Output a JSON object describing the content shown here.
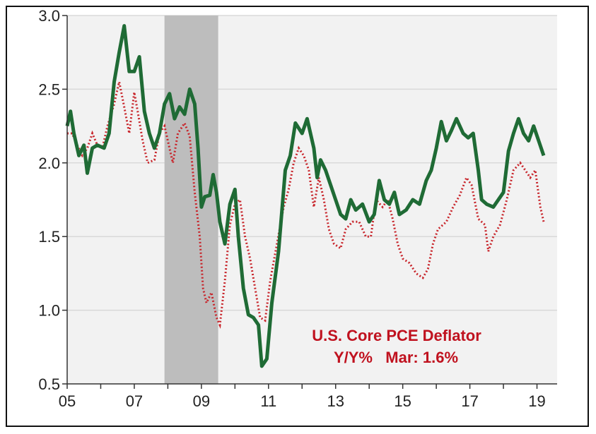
{
  "colors": {
    "plot_bg": "#f2f2f2",
    "grid": "#d9d9d9",
    "recession": "#bdbdbd",
    "green_series": "#1f6b35",
    "red_series": "#c8252b",
    "annotation": "#c0121f"
  },
  "chart_data": {
    "type": "line",
    "title": "",
    "annotation_lines": [
      "U.S. Core PCE Deflator",
      "Y/Y%   Mar: 1.6%"
    ],
    "xlabel": "",
    "ylabel": "",
    "xlim": [
      2005,
      2019.6
    ],
    "ylim": [
      0.5,
      3.0
    ],
    "y_ticks": [
      0.5,
      1.0,
      1.5,
      2.0,
      2.5,
      3.0
    ],
    "y_tick_labels": [
      "0.5",
      "1.0",
      "1.5",
      "2.0",
      "2.5",
      "3.0"
    ],
    "x_ticks": [
      2005,
      2007,
      2009,
      2011,
      2013,
      2015,
      2017,
      2019
    ],
    "x_tick_labels": [
      "05",
      "07",
      "09",
      "11",
      "13",
      "15",
      "17",
      "19"
    ],
    "grid": "horizontal",
    "recession_band": [
      2007.9,
      2009.5
    ],
    "series": [
      {
        "style": "solid",
        "points": [
          [
            2005.0,
            2.25
          ],
          [
            2005.1,
            2.35
          ],
          [
            2005.2,
            2.2
          ],
          [
            2005.35,
            2.05
          ],
          [
            2005.5,
            2.12
          ],
          [
            2005.6,
            1.93
          ],
          [
            2005.75,
            2.1
          ],
          [
            2005.9,
            2.12
          ],
          [
            2006.1,
            2.1
          ],
          [
            2006.25,
            2.2
          ],
          [
            2006.4,
            2.55
          ],
          [
            2006.55,
            2.75
          ],
          [
            2006.7,
            2.93
          ],
          [
            2006.85,
            2.62
          ],
          [
            2007.0,
            2.62
          ],
          [
            2007.15,
            2.72
          ],
          [
            2007.3,
            2.35
          ],
          [
            2007.45,
            2.2
          ],
          [
            2007.6,
            2.1
          ],
          [
            2007.75,
            2.2
          ],
          [
            2007.9,
            2.4
          ],
          [
            2008.05,
            2.47
          ],
          [
            2008.2,
            2.3
          ],
          [
            2008.35,
            2.38
          ],
          [
            2008.5,
            2.33
          ],
          [
            2008.65,
            2.5
          ],
          [
            2008.8,
            2.4
          ],
          [
            2008.9,
            2.1
          ],
          [
            2009.0,
            1.7
          ],
          [
            2009.1,
            1.77
          ],
          [
            2009.25,
            1.78
          ],
          [
            2009.35,
            1.92
          ],
          [
            2009.45,
            1.8
          ],
          [
            2009.55,
            1.6
          ],
          [
            2009.7,
            1.45
          ],
          [
            2009.85,
            1.72
          ],
          [
            2010.0,
            1.82
          ],
          [
            2010.1,
            1.5
          ],
          [
            2010.25,
            1.15
          ],
          [
            2010.4,
            0.97
          ],
          [
            2010.55,
            0.95
          ],
          [
            2010.7,
            0.9
          ],
          [
            2010.8,
            0.62
          ],
          [
            2010.95,
            0.67
          ],
          [
            2011.1,
            1.05
          ],
          [
            2011.3,
            1.4
          ],
          [
            2011.5,
            1.95
          ],
          [
            2011.65,
            2.05
          ],
          [
            2011.8,
            2.27
          ],
          [
            2012.0,
            2.2
          ],
          [
            2012.15,
            2.3
          ],
          [
            2012.35,
            2.1
          ],
          [
            2012.45,
            1.9
          ],
          [
            2012.55,
            2.02
          ],
          [
            2012.7,
            1.95
          ],
          [
            2012.85,
            1.85
          ],
          [
            2013.0,
            1.75
          ],
          [
            2013.15,
            1.65
          ],
          [
            2013.3,
            1.62
          ],
          [
            2013.45,
            1.75
          ],
          [
            2013.6,
            1.68
          ],
          [
            2013.8,
            1.72
          ],
          [
            2014.0,
            1.6
          ],
          [
            2014.15,
            1.65
          ],
          [
            2014.3,
            1.88
          ],
          [
            2014.45,
            1.75
          ],
          [
            2014.6,
            1.72
          ],
          [
            2014.75,
            1.8
          ],
          [
            2014.9,
            1.65
          ],
          [
            2015.1,
            1.68
          ],
          [
            2015.3,
            1.75
          ],
          [
            2015.5,
            1.72
          ],
          [
            2015.7,
            1.88
          ],
          [
            2015.85,
            1.95
          ],
          [
            2016.0,
            2.1
          ],
          [
            2016.15,
            2.28
          ],
          [
            2016.3,
            2.15
          ],
          [
            2016.45,
            2.22
          ],
          [
            2016.6,
            2.3
          ],
          [
            2016.8,
            2.2
          ],
          [
            2016.95,
            2.17
          ],
          [
            2017.1,
            2.2
          ],
          [
            2017.25,
            1.95
          ],
          [
            2017.35,
            1.75
          ],
          [
            2017.5,
            1.72
          ],
          [
            2017.7,
            1.7
          ],
          [
            2017.85,
            1.75
          ],
          [
            2018.0,
            1.8
          ],
          [
            2018.15,
            2.08
          ],
          [
            2018.3,
            2.2
          ],
          [
            2018.45,
            2.3
          ],
          [
            2018.6,
            2.2
          ],
          [
            2018.75,
            2.15
          ],
          [
            2018.9,
            2.25
          ],
          [
            2019.05,
            2.15
          ],
          [
            2019.2,
            2.05
          ]
        ]
      },
      {
        "style": "dotted",
        "points": [
          [
            2005.0,
            2.2
          ],
          [
            2005.15,
            2.2
          ],
          [
            2005.3,
            2.12
          ],
          [
            2005.45,
            2.05
          ],
          [
            2005.6,
            2.1
          ],
          [
            2005.75,
            2.2
          ],
          [
            2005.9,
            2.12
          ],
          [
            2006.05,
            2.1
          ],
          [
            2006.2,
            2.25
          ],
          [
            2006.4,
            2.4
          ],
          [
            2006.55,
            2.55
          ],
          [
            2006.7,
            2.38
          ],
          [
            2006.85,
            2.2
          ],
          [
            2007.0,
            2.48
          ],
          [
            2007.1,
            2.35
          ],
          [
            2007.25,
            2.15
          ],
          [
            2007.4,
            2.0
          ],
          [
            2007.6,
            2.02
          ],
          [
            2007.75,
            2.2
          ],
          [
            2007.9,
            2.25
          ],
          [
            2008.0,
            2.15
          ],
          [
            2008.15,
            2.0
          ],
          [
            2008.3,
            2.2
          ],
          [
            2008.5,
            2.27
          ],
          [
            2008.65,
            2.18
          ],
          [
            2008.8,
            1.8
          ],
          [
            2008.95,
            1.5
          ],
          [
            2009.05,
            1.15
          ],
          [
            2009.15,
            1.05
          ],
          [
            2009.3,
            1.12
          ],
          [
            2009.45,
            0.95
          ],
          [
            2009.55,
            0.9
          ],
          [
            2009.7,
            1.2
          ],
          [
            2009.85,
            1.58
          ],
          [
            2010.0,
            1.72
          ],
          [
            2010.15,
            1.75
          ],
          [
            2010.3,
            1.5
          ],
          [
            2010.45,
            1.35
          ],
          [
            2010.6,
            1.15
          ],
          [
            2010.75,
            0.95
          ],
          [
            2010.9,
            0.93
          ],
          [
            2011.05,
            1.2
          ],
          [
            2011.25,
            1.45
          ],
          [
            2011.45,
            1.7
          ],
          [
            2011.6,
            1.82
          ],
          [
            2011.75,
            2.0
          ],
          [
            2011.9,
            2.1
          ],
          [
            2012.05,
            2.05
          ],
          [
            2012.2,
            1.95
          ],
          [
            2012.35,
            1.7
          ],
          [
            2012.5,
            1.9
          ],
          [
            2012.65,
            1.75
          ],
          [
            2012.8,
            1.55
          ],
          [
            2012.95,
            1.45
          ],
          [
            2013.15,
            1.42
          ],
          [
            2013.3,
            1.55
          ],
          [
            2013.5,
            1.6
          ],
          [
            2013.7,
            1.6
          ],
          [
            2013.9,
            1.5
          ],
          [
            2014.05,
            1.5
          ],
          [
            2014.2,
            1.75
          ],
          [
            2014.4,
            1.7
          ],
          [
            2014.55,
            1.75
          ],
          [
            2014.7,
            1.62
          ],
          [
            2014.85,
            1.45
          ],
          [
            2015.0,
            1.35
          ],
          [
            2015.2,
            1.32
          ],
          [
            2015.4,
            1.25
          ],
          [
            2015.6,
            1.22
          ],
          [
            2015.75,
            1.28
          ],
          [
            2015.9,
            1.45
          ],
          [
            2016.05,
            1.55
          ],
          [
            2016.3,
            1.6
          ],
          [
            2016.5,
            1.7
          ],
          [
            2016.7,
            1.78
          ],
          [
            2016.9,
            1.9
          ],
          [
            2017.05,
            1.85
          ],
          [
            2017.25,
            1.62
          ],
          [
            2017.45,
            1.58
          ],
          [
            2017.55,
            1.4
          ],
          [
            2017.7,
            1.5
          ],
          [
            2017.9,
            1.58
          ],
          [
            2018.1,
            1.75
          ],
          [
            2018.3,
            1.95
          ],
          [
            2018.5,
            2.0
          ],
          [
            2018.65,
            1.95
          ],
          [
            2018.8,
            1.9
          ],
          [
            2018.95,
            1.95
          ],
          [
            2019.1,
            1.7
          ],
          [
            2019.2,
            1.6
          ]
        ]
      }
    ]
  }
}
